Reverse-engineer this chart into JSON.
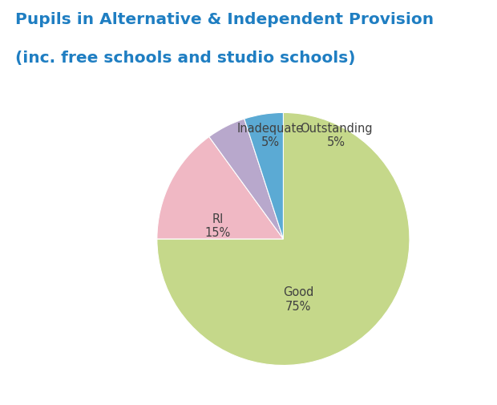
{
  "title_line1": "Pupils in Alternative & Independent Provision",
  "title_line2": "(inc. free schools and studio schools)",
  "title_color": "#1F7EC2",
  "labels": [
    "Good",
    "RI",
    "Inadequate",
    "Outstanding"
  ],
  "values": [
    75,
    15,
    5,
    5
  ],
  "colors": [
    "#C5D88A",
    "#F0B8C4",
    "#B8A8CC",
    "#5BAAD4"
  ],
  "background_color": "#ffffff",
  "startangle": 90,
  "label_fontsize": 10.5,
  "title_fontsize": 14.5,
  "text_color": "#404040"
}
